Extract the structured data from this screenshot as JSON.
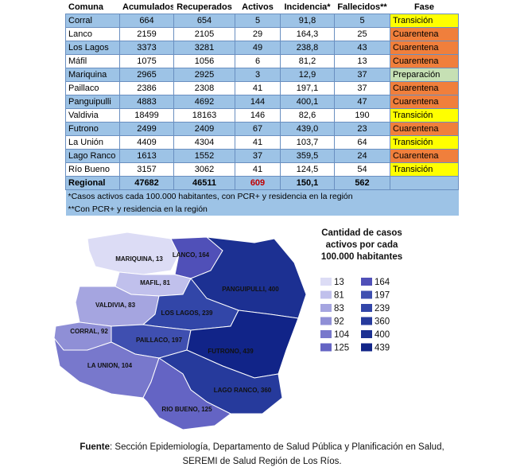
{
  "table": {
    "header": [
      "Comuna",
      "Acumulados",
      "Recuperados",
      "Activos",
      "Incidencia*",
      "Fallecidos**",
      "Fase"
    ],
    "rows": [
      [
        "Corral",
        "664",
        "654",
        "5",
        "91,8",
        "5",
        "Transición"
      ],
      [
        "Lanco",
        "2159",
        "2105",
        "29",
        "164,3",
        "25",
        "Cuarentena"
      ],
      [
        "Los Lagos",
        "3373",
        "3281",
        "49",
        "238,8",
        "43",
        "Cuarentena"
      ],
      [
        "Máfil",
        "1075",
        "1056",
        "6",
        "81,2",
        "13",
        "Cuarentena"
      ],
      [
        "Mariquina",
        "2965",
        "2925",
        "3",
        "12,9",
        "37",
        "Preparación"
      ],
      [
        "Paillaco",
        "2386",
        "2308",
        "41",
        "197,1",
        "37",
        "Cuarentena"
      ],
      [
        "Panguipulli",
        "4883",
        "4692",
        "144",
        "400,1",
        "47",
        "Cuarentena"
      ],
      [
        "Valdivia",
        "18499",
        "18163",
        "146",
        "82,6",
        "190",
        "Transición"
      ],
      [
        "Futrono",
        "2499",
        "2409",
        "67",
        "439,0",
        "23",
        "Cuarentena"
      ],
      [
        "La Unión",
        "4409",
        "4304",
        "41",
        "103,7",
        "64",
        "Transición"
      ],
      [
        "Lago Ranco",
        "1613",
        "1552",
        "37",
        "359,5",
        "24",
        "Cuarentena"
      ],
      [
        "Río Bueno",
        "3157",
        "3062",
        "41",
        "124,5",
        "54",
        "Transición"
      ]
    ],
    "total": [
      "Regional",
      "47682",
      "46511",
      "609",
      "150,1",
      "562"
    ],
    "notes": [
      "*Casos activos cada 100.000 habitantes, con PCR+ y residencia en la región",
      "**Con PCR+ y residencia en la región"
    ],
    "fase_colors": {
      "Transición": "#ffff00",
      "Cuarentena": "#f07f3c",
      "Preparación": "#c6e0b4"
    }
  },
  "map": {
    "regions": [
      {
        "label": "MARIQUINA, 13",
        "color": "#dcdcf5"
      },
      {
        "label": "LANCO, 164",
        "color": "#5050b8"
      },
      {
        "label": "MAFIL, 81",
        "color": "#c0c0ec"
      },
      {
        "label": "PANGUIPULLI, 400",
        "color": "#1c3092"
      },
      {
        "label": "VALDIVIA, 83",
        "color": "#a5a5e0"
      },
      {
        "label": "LOS LAGOS, 239",
        "color": "#3246a8"
      },
      {
        "label": "CORRAL, 92",
        "color": "#8f8fd6"
      },
      {
        "label": "PAILLACO, 197",
        "color": "#3f4fb0"
      },
      {
        "label": "FUTRONO, 439",
        "color": "#112488"
      },
      {
        "label": "LA UNION, 104",
        "color": "#7878cc"
      },
      {
        "label": "LAGO RANCO, 360",
        "color": "#263a9c"
      },
      {
        "label": "RIO BUENO, 125",
        "color": "#6464c4"
      }
    ],
    "legend_title": [
      "Cantidad de casos",
      "activos por cada",
      "100.000 habitantes"
    ],
    "legend": [
      {
        "label": "13",
        "color": "#dcdcf5"
      },
      {
        "label": "81",
        "color": "#c0c0ec"
      },
      {
        "label": "83",
        "color": "#a5a5e0"
      },
      {
        "label": "92",
        "color": "#8f8fd6"
      },
      {
        "label": "104",
        "color": "#7878cc"
      },
      {
        "label": "125",
        "color": "#6464c4"
      },
      {
        "label": "164",
        "color": "#5050b8"
      },
      {
        "label": "197",
        "color": "#3f4fb0"
      },
      {
        "label": "239",
        "color": "#3246a8"
      },
      {
        "label": "360",
        "color": "#263a9c"
      },
      {
        "label": "400",
        "color": "#1c3092"
      },
      {
        "label": "439",
        "color": "#112488"
      }
    ]
  },
  "footer": {
    "bold": "Fuente",
    "line1": ": Sección Epidemiología, Departamento de Salud Pública y Planificación en Salud,",
    "line2": "SEREMI de Salud Región de Los Ríos."
  }
}
